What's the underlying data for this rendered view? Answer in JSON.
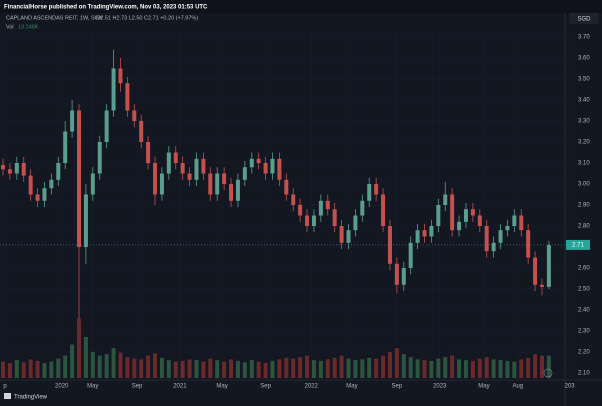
{
  "header": {
    "author_line": "FinancialHorse published on TradingView.com, Nov 03, 2023 01:53 UTC",
    "logo_text": "TradingView"
  },
  "chart_data": {
    "type": "candlestick",
    "title": "CAPLAND ASCENDAS REIT, 1W, SGX",
    "ohlc_line": "O2.51 H2.73 L2.50 C2.71 +0.20 (+7.97%)",
    "volume_label": "Vol",
    "volume_value_label": "13.248K",
    "currency": "SGD",
    "up_color": "#5b9e8f",
    "down_color": "#c5514e",
    "volume_up_color": "#2c5540",
    "volume_down_color": "#6a2a2c",
    "grid": true,
    "open": [
      3.09,
      3.07,
      3.05,
      3.1,
      3.04,
      2.95,
      2.92,
      2.98,
      3.02,
      3.1,
      3.25,
      3.35,
      2.7,
      2.95,
      3.05,
      3.2,
      3.35,
      3.55,
      3.48,
      3.35,
      3.3,
      3.2,
      3.1,
      2.95,
      3.05,
      3.15,
      3.1,
      3.05,
      3.02,
      3.12,
      3.05,
      2.95,
      3.05,
      3.0,
      2.92,
      3.02,
      3.08,
      3.12,
      3.1,
      3.05,
      3.12,
      3.02,
      2.95,
      2.9,
      2.85,
      2.8,
      2.85,
      2.92,
      2.88,
      2.8,
      2.72,
      2.78,
      2.85,
      2.92,
      3.0,
      2.95,
      2.8,
      2.62,
      2.52,
      2.6,
      2.72,
      2.78,
      2.75,
      2.8,
      2.9,
      2.95,
      2.78,
      2.82,
      2.88,
      2.85,
      2.8,
      2.68,
      2.72,
      2.78,
      2.8,
      2.85,
      2.78,
      2.65,
      2.52,
      2.51
    ],
    "high": [
      3.12,
      3.1,
      3.13,
      3.13,
      3.07,
      2.98,
      3.01,
      3.05,
      3.13,
      3.3,
      3.4,
      3.38,
      3.0,
      3.08,
      3.23,
      3.38,
      3.64,
      3.6,
      3.51,
      3.38,
      3.33,
      3.23,
      3.13,
      3.08,
      3.18,
      3.18,
      3.13,
      3.08,
      3.15,
      3.15,
      3.08,
      3.08,
      3.08,
      3.03,
      3.05,
      3.11,
      3.15,
      3.15,
      3.13,
      3.15,
      3.15,
      3.05,
      2.98,
      2.93,
      2.88,
      2.88,
      2.95,
      2.95,
      2.91,
      2.83,
      2.81,
      2.88,
      2.95,
      3.03,
      3.03,
      2.98,
      2.83,
      2.65,
      2.63,
      2.75,
      2.81,
      2.81,
      2.83,
      2.93,
      3.01,
      2.98,
      2.85,
      2.91,
      2.91,
      2.88,
      2.83,
      2.75,
      2.81,
      2.83,
      2.88,
      2.88,
      2.81,
      2.68,
      2.55,
      2.73
    ],
    "low": [
      3.04,
      3.02,
      3.02,
      3.01,
      2.92,
      2.89,
      2.89,
      2.95,
      2.99,
      3.07,
      3.22,
      2.36,
      2.62,
      2.92,
      3.02,
      3.17,
      3.32,
      3.44,
      3.32,
      3.27,
      3.17,
      3.07,
      2.9,
      2.92,
      3.02,
      3.07,
      3.02,
      2.99,
      2.99,
      3.02,
      2.92,
      2.92,
      2.97,
      2.89,
      2.89,
      2.99,
      3.05,
      3.07,
      3.02,
      3.02,
      2.99,
      2.92,
      2.87,
      2.82,
      2.77,
      2.77,
      2.82,
      2.85,
      2.77,
      2.69,
      2.69,
      2.75,
      2.82,
      2.89,
      2.92,
      2.77,
      2.59,
      2.48,
      2.49,
      2.57,
      2.69,
      2.72,
      2.72,
      2.77,
      2.87,
      2.75,
      2.75,
      2.79,
      2.82,
      2.77,
      2.65,
      2.65,
      2.69,
      2.75,
      2.77,
      2.75,
      2.62,
      2.49,
      2.47,
      2.5
    ],
    "close": [
      3.07,
      3.05,
      3.1,
      3.04,
      2.95,
      2.92,
      2.98,
      3.02,
      3.1,
      3.25,
      3.35,
      2.7,
      2.95,
      3.05,
      3.2,
      3.35,
      3.55,
      3.48,
      3.35,
      3.3,
      3.2,
      3.1,
      2.95,
      3.05,
      3.15,
      3.1,
      3.05,
      3.02,
      3.12,
      3.05,
      2.95,
      3.05,
      3.0,
      2.92,
      3.02,
      3.08,
      3.12,
      3.1,
      3.05,
      3.12,
      3.02,
      2.95,
      2.9,
      2.85,
      2.8,
      2.85,
      2.92,
      2.88,
      2.8,
      2.72,
      2.78,
      2.85,
      2.92,
      3.0,
      2.95,
      2.8,
      2.62,
      2.52,
      2.6,
      2.72,
      2.78,
      2.75,
      2.8,
      2.9,
      2.95,
      2.78,
      2.82,
      2.88,
      2.85,
      2.8,
      2.68,
      2.72,
      2.78,
      2.8,
      2.85,
      2.78,
      2.65,
      2.52,
      2.51,
      2.71
    ],
    "volume": [
      22,
      20,
      24,
      21,
      25,
      23,
      20,
      22,
      26,
      30,
      45,
      80,
      55,
      35,
      30,
      32,
      40,
      34,
      28,
      26,
      25,
      30,
      33,
      27,
      24,
      22,
      23,
      25,
      24,
      22,
      26,
      24,
      22,
      25,
      23,
      21,
      24,
      22,
      20,
      23,
      25,
      27,
      26,
      28,
      30,
      24,
      23,
      25,
      27,
      30,
      26,
      24,
      25,
      27,
      26,
      30,
      35,
      40,
      32,
      28,
      25,
      24,
      23,
      26,
      28,
      30,
      25,
      24,
      23,
      26,
      28,
      25,
      24,
      23,
      22,
      25,
      27,
      32,
      30,
      30
    ],
    "vlim": [
      0,
      110
    ],
    "ylim": [
      2.04,
      3.74
    ],
    "yticks": [
      {
        "value": 3.7,
        "label": "3.70"
      },
      {
        "value": 3.6,
        "label": "3.60"
      },
      {
        "value": 3.5,
        "label": "3.50"
      },
      {
        "value": 3.4,
        "label": "3.40"
      },
      {
        "value": 3.3,
        "label": "3.30"
      },
      {
        "value": 3.2,
        "label": "3.20"
      },
      {
        "value": 3.1,
        "label": "3.10"
      },
      {
        "value": 3.0,
        "label": "3.00"
      },
      {
        "value": 2.9,
        "label": "2.90"
      },
      {
        "value": 2.8,
        "label": "2.80"
      },
      {
        "value": 2.7,
        "label": "2.70"
      },
      {
        "value": 2.6,
        "label": "2.60"
      },
      {
        "value": 2.5,
        "label": "2.50"
      },
      {
        "value": 2.4,
        "label": "2.40"
      },
      {
        "value": 2.3,
        "label": "2.30"
      },
      {
        "value": 2.2,
        "label": "2.20"
      },
      {
        "value": 2.1,
        "label": "2.10"
      }
    ],
    "xticks": [
      {
        "value": 0.3,
        "label": "p"
      },
      {
        "value": 8.5,
        "label": "2020"
      },
      {
        "value": 13,
        "label": "May"
      },
      {
        "value": 19.4,
        "label": "Sep"
      },
      {
        "value": 25.6,
        "label": "2021"
      },
      {
        "value": 31.7,
        "label": "May"
      },
      {
        "value": 38,
        "label": "Sep"
      },
      {
        "value": 44.6,
        "label": "2022"
      },
      {
        "value": 50.5,
        "label": "May"
      },
      {
        "value": 57,
        "label": "Sep"
      },
      {
        "value": 63.2,
        "label": "2023"
      },
      {
        "value": 69.6,
        "label": "May"
      },
      {
        "value": 74.5,
        "label": "Aug"
      },
      {
        "value": 82,
        "label": "203"
      }
    ],
    "last_price": {
      "value": 2.71,
      "label": "2.71"
    }
  }
}
